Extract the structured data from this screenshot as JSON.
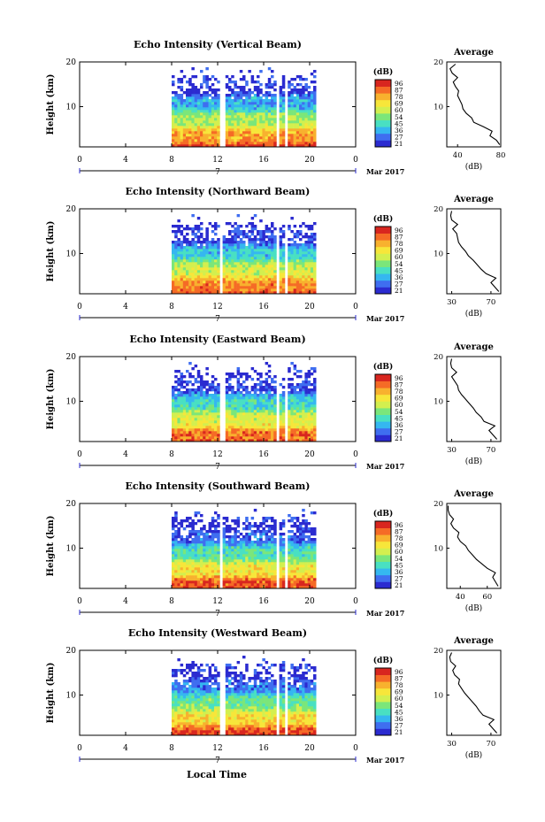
{
  "x_axis_label": "Local Time",
  "date_label": "Mar 2017",
  "day_label": "7",
  "colorbar": {
    "unit": "(dB)",
    "ticks": [
      "96",
      "87",
      "78",
      "69",
      "60",
      "54",
      "45",
      "36",
      "27",
      "21"
    ],
    "colors": [
      "#2b2bd0",
      "#3f6ef0",
      "#35b7f0",
      "#49e0c2",
      "#7be67a",
      "#d3ef4f",
      "#f7e63a",
      "#f8b12e",
      "#f56b26",
      "#d8261f"
    ]
  },
  "chart_data": [
    {
      "type": "heatmap",
      "title": "Echo Intensity (Vertical Beam)",
      "ylabel": "Height (km)",
      "xlim": [
        0,
        24
      ],
      "ylim": [
        1,
        20
      ],
      "x_ticks": [
        "0",
        "4",
        "8",
        "12",
        "16",
        "20",
        "0"
      ],
      "y_ticks": [
        "20",
        "10"
      ],
      "data_start_hour": 8,
      "data_end_hour": 20.5,
      "gaps_hour": [
        [
          12.0,
          12.5
        ],
        [
          17.0,
          17.2
        ],
        [
          17.7,
          17.9
        ]
      ],
      "z_range_db": [
        21,
        96
      ],
      "average": {
        "title": "Average",
        "xlabel": "(dB)",
        "x_ticks": [
          "40",
          "80"
        ],
        "y_ticks": [
          "20",
          "10"
        ],
        "xlim": [
          30,
          80
        ],
        "ylim": [
          1,
          20
        ],
        "profile": [
          [
            79,
            1.5
          ],
          [
            76,
            2.5
          ],
          [
            70,
            3.5
          ],
          [
            72,
            4.5
          ],
          [
            64,
            5.5
          ],
          [
            55,
            6.5
          ],
          [
            53,
            7.5
          ],
          [
            48,
            8.5
          ],
          [
            45,
            9.5
          ],
          [
            44,
            10.5
          ],
          [
            42,
            11.5
          ],
          [
            40,
            12.5
          ],
          [
            41,
            13.5
          ],
          [
            38,
            14.5
          ],
          [
            36,
            15.5
          ],
          [
            40,
            16.5
          ],
          [
            35,
            17.5
          ],
          [
            33,
            18.5
          ],
          [
            38,
            19.5
          ]
        ]
      }
    },
    {
      "type": "heatmap",
      "title": "Echo Intensity (Northward Beam)",
      "ylabel": "Height (km)",
      "xlim": [
        0,
        24
      ],
      "ylim": [
        1,
        20
      ],
      "x_ticks": [
        "0",
        "4",
        "8",
        "12",
        "16",
        "20",
        "0"
      ],
      "y_ticks": [
        "20",
        "10"
      ],
      "data_start_hour": 8,
      "data_end_hour": 20.5,
      "gaps_hour": [
        [
          12.0,
          12.4
        ],
        [
          17.0,
          17.2
        ],
        [
          17.7,
          17.9
        ]
      ],
      "z_range_db": [
        21,
        96
      ],
      "average": {
        "title": "Average",
        "xlabel": "(dB)",
        "x_ticks": [
          "30",
          "70"
        ],
        "y_ticks": [
          "20",
          "10"
        ],
        "xlim": [
          25,
          80
        ],
        "ylim": [
          1,
          20
        ],
        "profile": [
          [
            78,
            1.5
          ],
          [
            74,
            2.5
          ],
          [
            70,
            3.5
          ],
          [
            75,
            4.5
          ],
          [
            65,
            5.5
          ],
          [
            60,
            6.5
          ],
          [
            56,
            7.5
          ],
          [
            52,
            8.5
          ],
          [
            47,
            9.5
          ],
          [
            44,
            10.5
          ],
          [
            40,
            11.5
          ],
          [
            37,
            12.5
          ],
          [
            36,
            13.5
          ],
          [
            35,
            14.5
          ],
          [
            31,
            15.5
          ],
          [
            36,
            16.5
          ],
          [
            30,
            17.5
          ],
          [
            29,
            18.5
          ],
          [
            30,
            19.5
          ]
        ]
      }
    },
    {
      "type": "heatmap",
      "title": "Echo Intensity (Eastward Beam)",
      "ylabel": "Height (km)",
      "xlim": [
        0,
        24
      ],
      "ylim": [
        1,
        20
      ],
      "x_ticks": [
        "0",
        "4",
        "8",
        "12",
        "16",
        "20",
        "0"
      ],
      "y_ticks": [
        "20",
        "10"
      ],
      "data_start_hour": 8,
      "data_end_hour": 20.5,
      "gaps_hour": [
        [
          12.0,
          12.5
        ],
        [
          17.0,
          17.2
        ],
        [
          17.7,
          17.9
        ]
      ],
      "z_range_db": [
        21,
        96
      ],
      "average": {
        "title": "Average",
        "xlabel": "(dB)",
        "x_ticks": [
          "30",
          "70"
        ],
        "y_ticks": [
          "20",
          "10"
        ],
        "xlim": [
          25,
          80
        ],
        "ylim": [
          1,
          20
        ],
        "profile": [
          [
            76,
            1.5
          ],
          [
            72,
            2.5
          ],
          [
            68,
            3.5
          ],
          [
            74,
            4.5
          ],
          [
            63,
            5.5
          ],
          [
            60,
            6.5
          ],
          [
            55,
            7.5
          ],
          [
            52,
            8.5
          ],
          [
            48,
            9.5
          ],
          [
            44,
            10.5
          ],
          [
            40,
            11.5
          ],
          [
            37,
            12.5
          ],
          [
            36,
            13.5
          ],
          [
            33,
            14.5
          ],
          [
            30,
            15.5
          ],
          [
            35,
            16.5
          ],
          [
            30,
            17.5
          ],
          [
            29,
            18.5
          ],
          [
            30,
            19.5
          ]
        ]
      }
    },
    {
      "type": "heatmap",
      "title": "Echo Intensity (Southward Beam)",
      "ylabel": "Height (km)",
      "xlim": [
        0,
        24
      ],
      "ylim": [
        1,
        20
      ],
      "x_ticks": [
        "0",
        "4",
        "8",
        "12",
        "16",
        "20",
        "0"
      ],
      "y_ticks": [
        "20",
        "10"
      ],
      "data_start_hour": 8,
      "data_end_hour": 20.5,
      "gaps_hour": [
        [
          12.0,
          12.4
        ],
        [
          17.0,
          17.2
        ],
        [
          17.7,
          17.9
        ]
      ],
      "z_range_db": [
        21,
        96
      ],
      "average": {
        "title": "Average",
        "xlabel": "(dB)",
        "x_ticks": [
          "40",
          "60"
        ],
        "y_ticks": [
          "20",
          "10"
        ],
        "xlim": [
          30,
          70
        ],
        "ylim": [
          1,
          20
        ],
        "profile": [
          [
            68,
            1.5
          ],
          [
            66,
            2.5
          ],
          [
            64,
            3.5
          ],
          [
            66,
            4.5
          ],
          [
            60,
            5.5
          ],
          [
            56,
            6.5
          ],
          [
            52,
            7.5
          ],
          [
            49,
            8.5
          ],
          [
            46,
            9.5
          ],
          [
            44,
            10.5
          ],
          [
            40,
            11.5
          ],
          [
            38,
            12.5
          ],
          [
            39,
            13.5
          ],
          [
            35,
            14.5
          ],
          [
            33,
            15.5
          ],
          [
            35,
            16.5
          ],
          [
            32,
            17.5
          ],
          [
            31,
            18.5
          ],
          [
            31,
            19.5
          ]
        ]
      }
    },
    {
      "type": "heatmap",
      "title": "Echo Intensity (Westward Beam)",
      "ylabel": "Height (km)",
      "xlim": [
        0,
        24
      ],
      "ylim": [
        1,
        20
      ],
      "x_ticks": [
        "0",
        "4",
        "8",
        "12",
        "16",
        "20",
        "0"
      ],
      "y_ticks": [
        "20",
        "10"
      ],
      "data_start_hour": 8,
      "data_end_hour": 20.5,
      "gaps_hour": [
        [
          12.0,
          12.5
        ],
        [
          17.0,
          17.2
        ],
        [
          17.7,
          17.9
        ]
      ],
      "z_range_db": [
        21,
        96
      ],
      "average": {
        "title": "Average",
        "xlabel": "(dB)",
        "x_ticks": [
          "30",
          "70"
        ],
        "y_ticks": [
          "20",
          "10"
        ],
        "xlim": [
          25,
          80
        ],
        "ylim": [
          1,
          20
        ],
        "profile": [
          [
            76,
            1.5
          ],
          [
            72,
            2.5
          ],
          [
            68,
            3.5
          ],
          [
            73,
            4.5
          ],
          [
            62,
            5.5
          ],
          [
            58,
            6.5
          ],
          [
            55,
            7.5
          ],
          [
            51,
            8.5
          ],
          [
            47,
            9.5
          ],
          [
            43,
            10.5
          ],
          [
            40,
            11.5
          ],
          [
            37,
            12.5
          ],
          [
            38,
            13.5
          ],
          [
            33,
            14.5
          ],
          [
            31,
            15.5
          ],
          [
            34,
            16.5
          ],
          [
            29,
            17.5
          ],
          [
            28,
            18.5
          ],
          [
            30,
            19.5
          ]
        ]
      }
    }
  ]
}
